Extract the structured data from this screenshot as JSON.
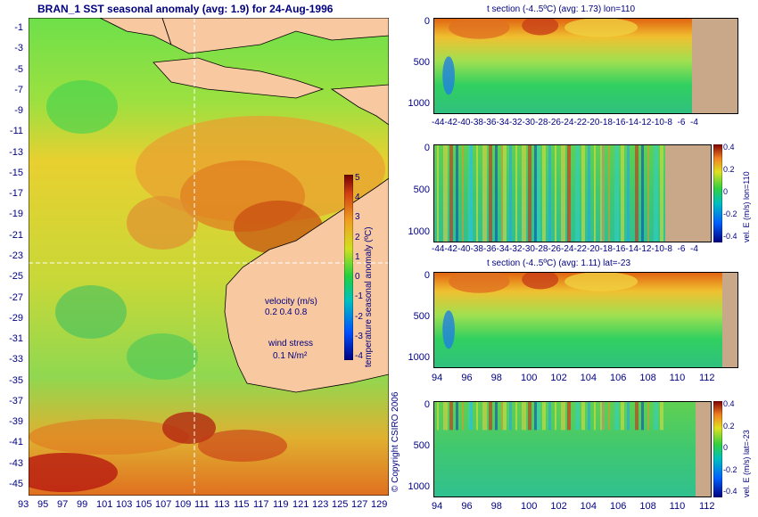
{
  "map": {
    "title": "BRAN_1  SST seasonal anomaly  (avg: 1.9) for 24-Aug-1996",
    "lat_ticks": [
      "-1",
      "-3",
      "-5",
      "-7",
      "-9",
      "-11",
      "-13",
      "-15",
      "-17",
      "-19",
      "-21",
      "-23",
      "-25",
      "-27",
      "-29",
      "-31",
      "-33",
      "-35",
      "-37",
      "-39",
      "-41",
      "-43",
      "-45"
    ],
    "lon_ticks": [
      "93",
      "95",
      "97",
      "99",
      "101",
      "103",
      "105",
      "107",
      "109",
      "111",
      "113",
      "115",
      "117",
      "119",
      "121",
      "123",
      "125",
      "127",
      "129"
    ],
    "colorbar_label": "temperature seasonal anomaly (ºC)",
    "colorbar_ticks": [
      "5",
      "4",
      "3",
      "2",
      "1",
      "0",
      "-1",
      "-2",
      "-3",
      "-4"
    ],
    "velocity_legend": {
      "label": "velocity (m/s)",
      "values": "0.2 0.4 0.8"
    },
    "wind_legend": {
      "label": "wind stress",
      "value": "0.1 N/m²"
    },
    "copyright": "© Copyright CSIRO 2006",
    "land_color": "#f8c8a0"
  },
  "panels": [
    {
      "title": "t section (-4..5ºC) (avg: 1.73) lon=110",
      "y_ticks": [
        "0",
        "500",
        "1000"
      ],
      "x_ticks": [
        "-44",
        "-42",
        "-40",
        "-38",
        "-36",
        "-34",
        "-32",
        "-30",
        "-28",
        "-26",
        "-24",
        "-22",
        "-20",
        "-18",
        "-16",
        "-14",
        "-12",
        "-10",
        "-8",
        "-6",
        "-4"
      ],
      "colorbar": null
    },
    {
      "title": "",
      "y_ticks": [
        "0",
        "500",
        "1000"
      ],
      "x_ticks": [
        "-44",
        "-42",
        "-40",
        "-38",
        "-36",
        "-34",
        "-32",
        "-30",
        "-28",
        "-26",
        "-24",
        "-22",
        "-20",
        "-18",
        "-16",
        "-14",
        "-12",
        "-10",
        "-8",
        "-6",
        "-4"
      ],
      "colorbar": {
        "label": "vel. E (m/s) lon=110",
        "ticks": [
          "0.4",
          "0.2",
          "0",
          "-0.2",
          "-0.4"
        ]
      }
    },
    {
      "title": "t section (-4..5ºC) (avg: 1.11) lat=-23",
      "y_ticks": [
        "0",
        "500",
        "1000"
      ],
      "x_ticks": [
        "94",
        "96",
        "98",
        "100",
        "102",
        "104",
        "106",
        "108",
        "110",
        "112"
      ],
      "colorbar": null
    },
    {
      "title": "",
      "y_ticks": [
        "0",
        "500",
        "1000"
      ],
      "x_ticks": [
        "94",
        "96",
        "98",
        "100",
        "102",
        "104",
        "106",
        "108",
        "110",
        "112"
      ],
      "colorbar": {
        "label": "vel. E (m/s) lat=-23",
        "ticks": [
          "0.4",
          "0.2",
          "0",
          "-0.2",
          "-0.4"
        ]
      }
    }
  ],
  "chart_data": [
    {
      "type": "heatmap",
      "title": "BRAN_1  SST seasonal anomaly  (avg: 1.9) for 24-Aug-1996",
      "xlim": [
        93,
        130
      ],
      "ylim": [
        -45,
        0
      ],
      "color_range": [
        -4,
        5
      ],
      "colorbar_label": "temperature seasonal anomaly (ºC)"
    },
    {
      "type": "heatmap",
      "title": "t section (-4..5ºC) (avg: 1.73) lon=110",
      "xlim": [
        -45,
        -3
      ],
      "ylim": [
        1050,
        0
      ]
    },
    {
      "type": "heatmap",
      "title": "",
      "xlim": [
        -45,
        -3
      ],
      "ylim": [
        1050,
        0
      ],
      "color_range": [
        -0.4,
        0.4
      ],
      "colorbar_label": "vel. E (m/s) lon=110"
    },
    {
      "type": "heatmap",
      "title": "t section (-4..5ºC) (avg: 1.11) lat=-23",
      "xlim": [
        93,
        113
      ],
      "ylim": [
        1050,
        0
      ]
    },
    {
      "type": "heatmap",
      "title": "",
      "xlim": [
        93,
        113
      ],
      "ylim": [
        1050,
        0
      ],
      "color_range": [
        -0.4,
        0.4
      ],
      "colorbar_label": "vel. E (m/s) lat=-23"
    }
  ]
}
